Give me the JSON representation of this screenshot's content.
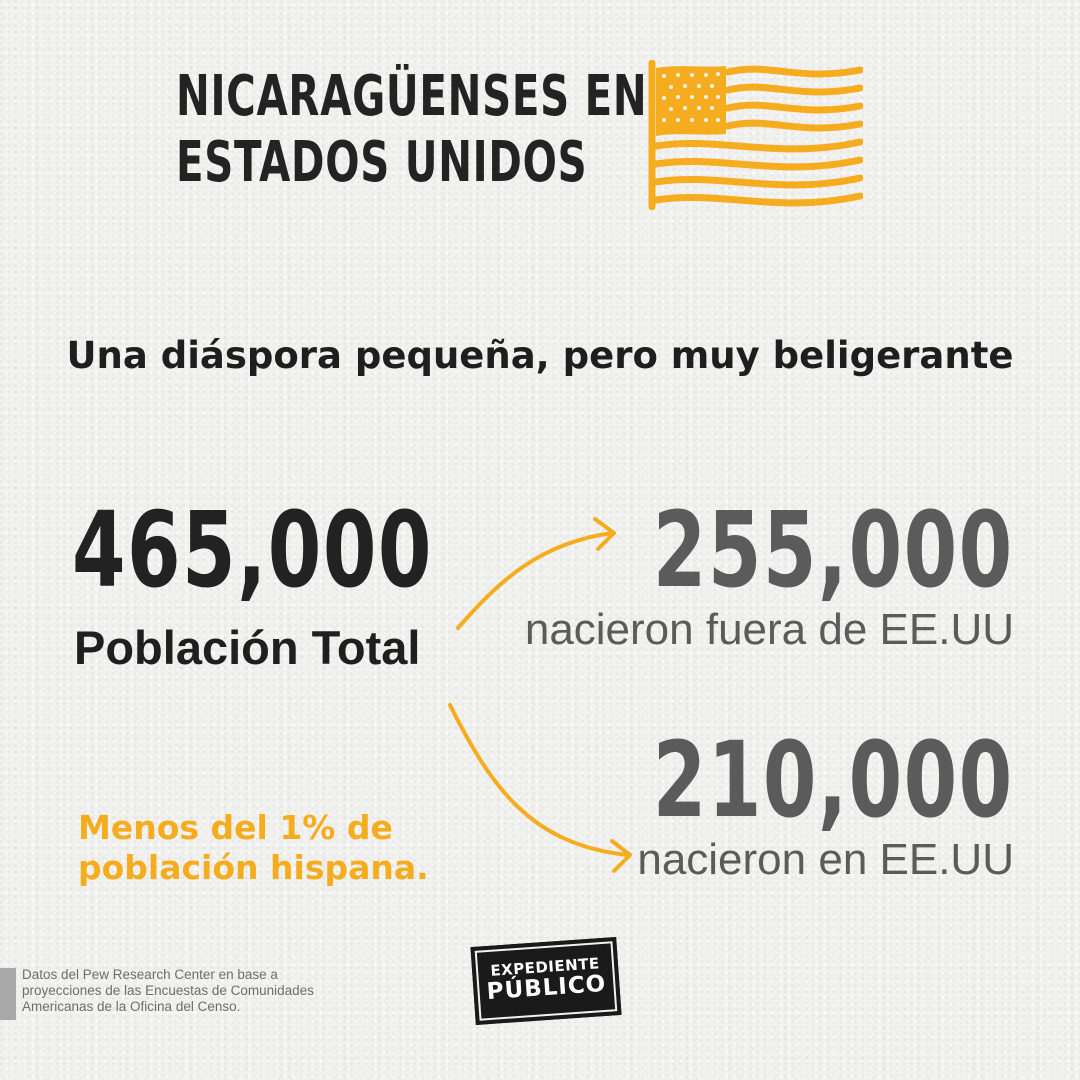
{
  "title": {
    "line1": "NICARAGÜENSES EN",
    "line2": "ESTADOS UNIDOS"
  },
  "subtitle": "Una diáspora pequeña, pero muy beligerante",
  "total": {
    "value": "465,000",
    "label": "Población Total"
  },
  "born_outside": {
    "value": "255,000",
    "label": "nacieron fuera de EE.UU"
  },
  "born_inside": {
    "value": "210,000",
    "label": "nacieron en EE.UU"
  },
  "note": {
    "line1": "Menos del 1% de",
    "line2": "población hispana."
  },
  "source": {
    "line1": "Datos del Pew Research Center en base a",
    "line2": "proyecciones de las Encuestas de Comunidades",
    "line3": "Americanas de la Oficina del Censo."
  },
  "logo": {
    "line1": "EXPEDIENTE",
    "line2": "PÚBLICO"
  },
  "icons": {
    "flag": "us-flag-icon",
    "arrows": "split-arrows-icon"
  },
  "colors": {
    "accent": "#f5ad1f",
    "dark": "#222222",
    "gray": "#5b5b5b",
    "background": "#f1f1ef"
  }
}
